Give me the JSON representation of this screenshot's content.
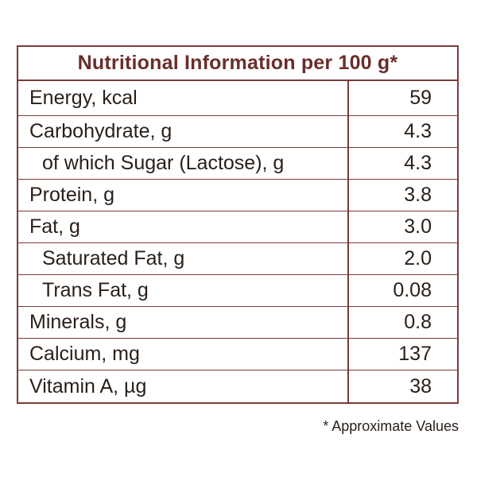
{
  "title": "Nutritional Information per 100 g*",
  "rows": [
    {
      "name": "Energy, kcal",
      "value": "59"
    },
    {
      "name": "Carbohydrate, g",
      "value": "4.3"
    },
    {
      "name": "of which Sugar (Lactose), g",
      "value": "4.3"
    },
    {
      "name": "Protein, g",
      "value": "3.8"
    },
    {
      "name": "Fat, g",
      "value": "3.0"
    },
    {
      "name": "Saturated Fat, g",
      "value": "2.0"
    },
    {
      "name": "Trans Fat, g",
      "value": "0.08"
    },
    {
      "name": "Minerals, g",
      "value": "0.8"
    },
    {
      "name": "Calcium, mg",
      "value": "137"
    },
    {
      "name": "Vitamin A, µg",
      "value": "38"
    }
  ],
  "footnote": "* Approximate Values",
  "colors": {
    "border": "#7a3b3a",
    "title_text": "#6b2d2a",
    "body_text": "#2a1e18"
  }
}
